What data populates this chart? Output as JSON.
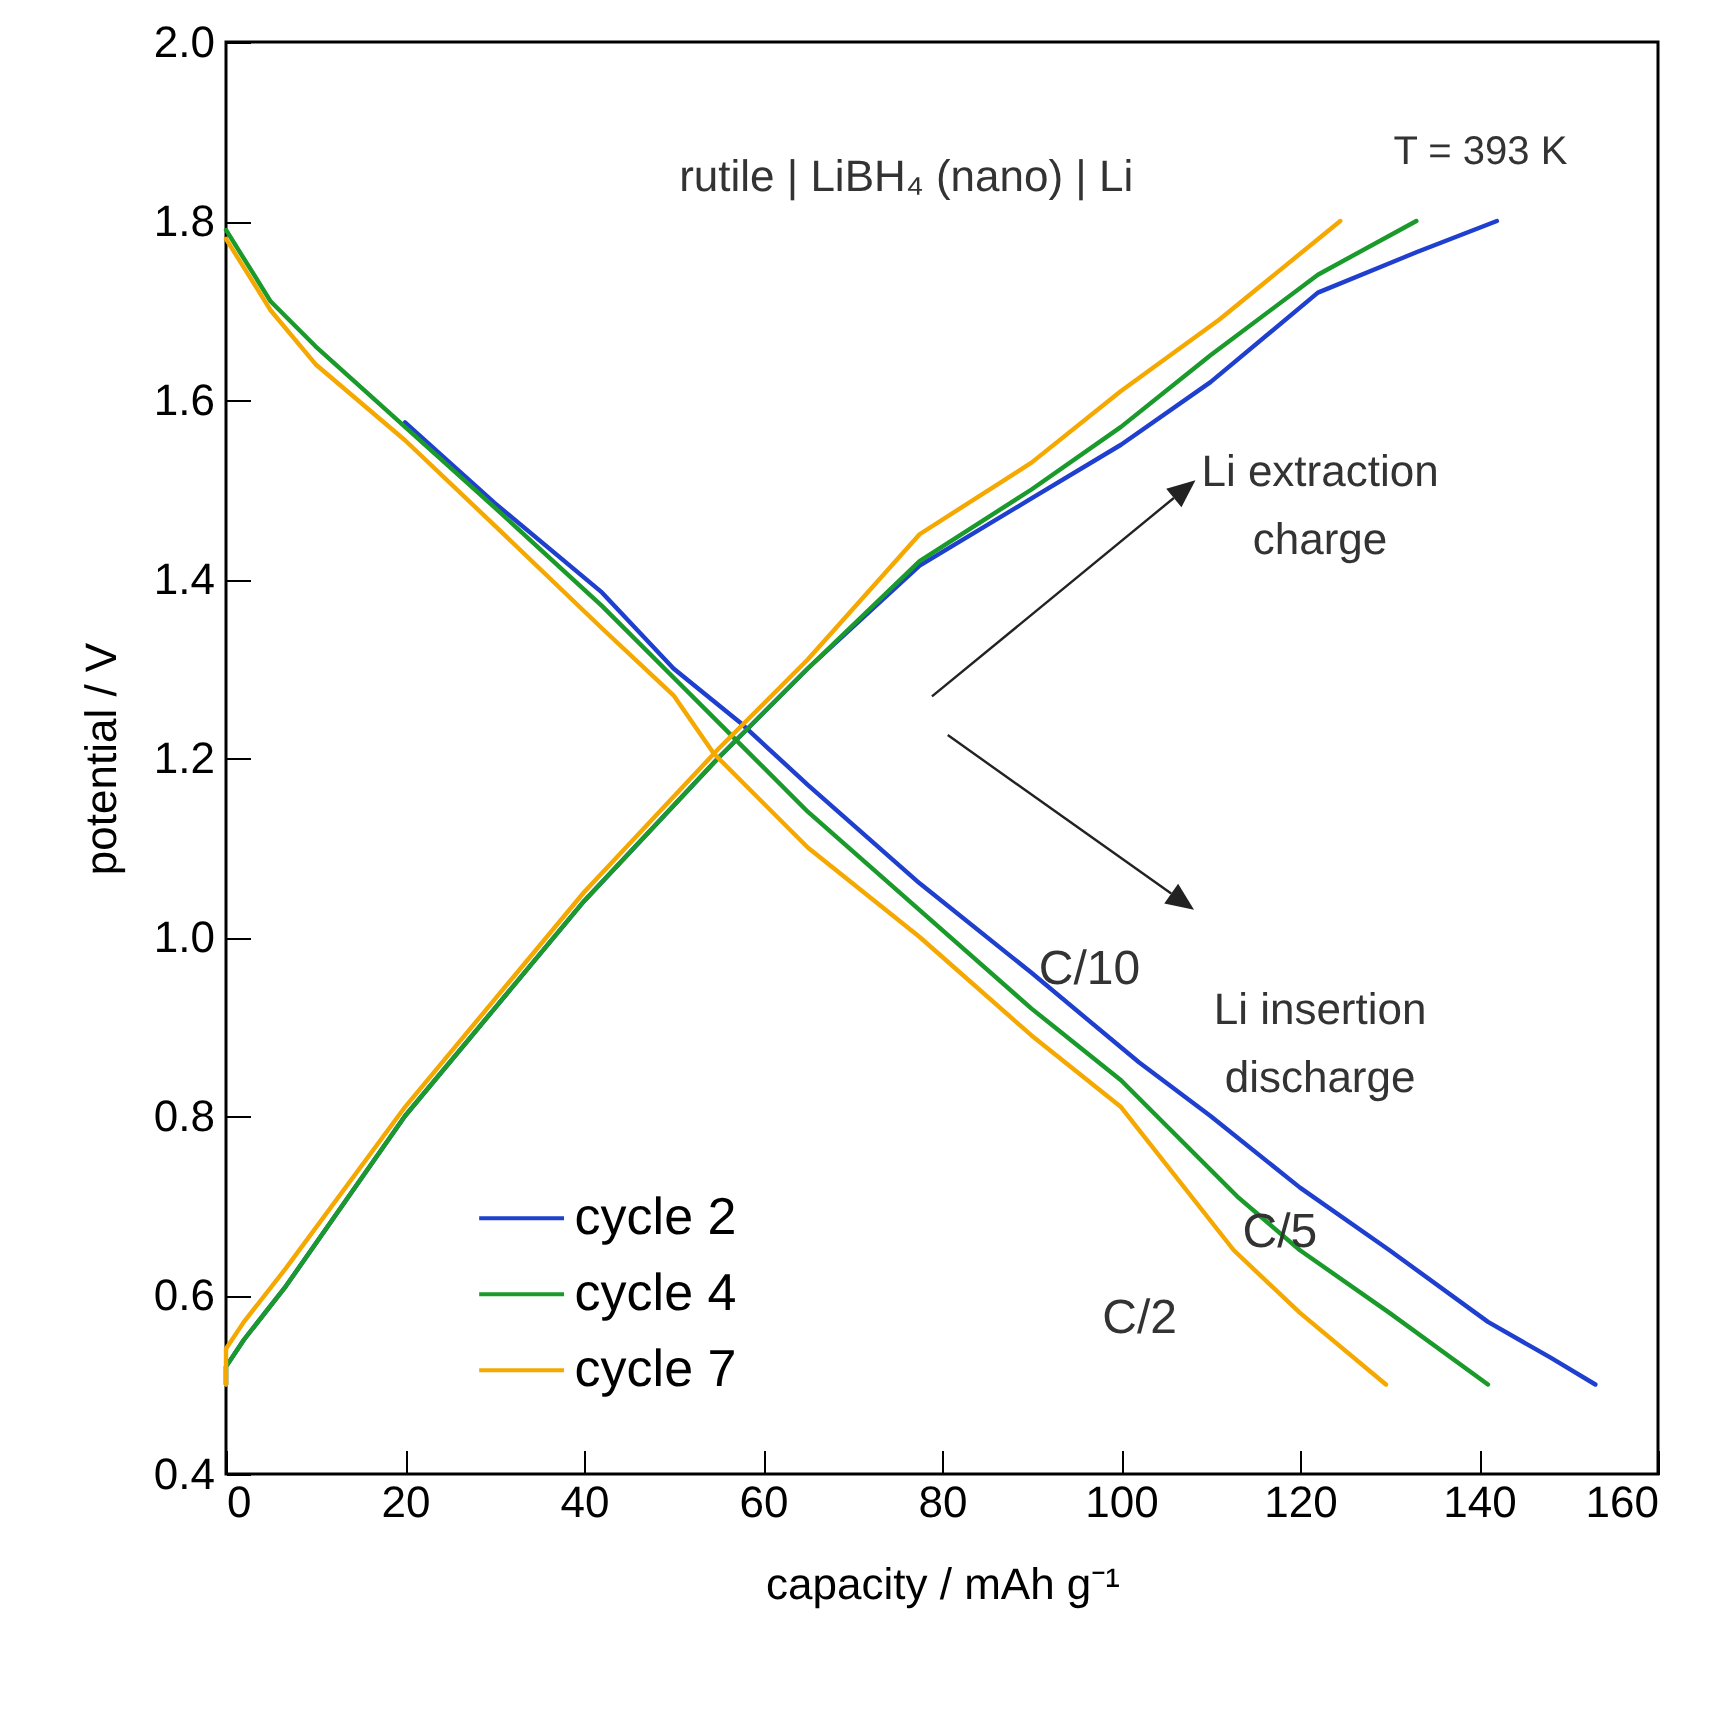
{
  "chart_data": {
    "type": "line",
    "xlabel": "capacity / mAh g⁻¹",
    "ylabel": "potential / V",
    "xlim": [
      0,
      160
    ],
    "xticks": [
      0,
      20,
      40,
      60,
      80,
      100,
      120,
      140,
      160
    ],
    "ylim": [
      0.4,
      2.0
    ],
    "yticks": [
      0.4,
      0.6,
      0.8,
      {
        "value": 1,
        "label": "1.0"
      },
      1.2,
      1.4,
      1.6,
      1.8,
      {
        "value": 2,
        "label": "2.0"
      }
    ],
    "grid": false,
    "legend": "bottom left",
    "series": [
      {
        "name": "cycle 2",
        "color": "#1f3fcf",
        "x": [
          20,
          30,
          42,
          50,
          57.4,
          65,
          77.5,
          90,
          102,
          110,
          120,
          130,
          141,
          148,
          153,
          null,
          0,
          0,
          2,
          6.7,
          20,
          30,
          40,
          55,
          65,
          77.5,
          90,
          100,
          110,
          122,
          133,
          142
        ],
        "values": [
          1.575,
          1.485,
          1.385,
          1.3,
          1.24,
          1.17,
          1.06,
          0.96,
          0.86,
          0.8,
          0.72,
          0.65,
          0.57,
          0.53,
          0.5,
          null,
          0.5,
          0.52,
          0.55,
          0.61,
          0.8,
          0.92,
          1.04,
          1.2,
          1.3,
          1.415,
          1.49,
          1.55,
          1.62,
          1.72,
          1.765,
          1.8
        ]
      },
      {
        "name": "cycle 4",
        "color": "#1a9a2a",
        "x": [
          0,
          5,
          10,
          20,
          30,
          42,
          50,
          57,
          65,
          77.5,
          90,
          100,
          113,
          120,
          130,
          141,
          null,
          0,
          0,
          2,
          6.7,
          20,
          30,
          40,
          55,
          65,
          77.5,
          90,
          100,
          110,
          122,
          133
        ],
        "values": [
          1.79,
          1.71,
          1.66,
          1.57,
          1.48,
          1.37,
          1.29,
          1.22,
          1.14,
          1.03,
          0.92,
          0.84,
          0.71,
          0.65,
          0.58,
          0.5,
          null,
          0.5,
          0.52,
          0.55,
          0.61,
          0.8,
          0.92,
          1.04,
          1.2,
          1.3,
          1.42,
          1.5,
          1.57,
          1.65,
          1.74,
          1.8
        ]
      },
      {
        "name": "cycle 7",
        "color": "#f5a800",
        "x": [
          0,
          5,
          10,
          20,
          30,
          42,
          50,
          54.5,
          65,
          77.5,
          90,
          100,
          112.6,
          120,
          129.6,
          null,
          0,
          0,
          2,
          6.7,
          20,
          30,
          40,
          55,
          65,
          77.5,
          90,
          100,
          111,
          124.5
        ],
        "values": [
          1.78,
          1.7,
          1.64,
          1.555,
          1.46,
          1.345,
          1.27,
          1.205,
          1.1,
          1.0,
          0.89,
          0.81,
          0.65,
          0.58,
          0.5,
          null,
          0.5,
          0.54,
          0.57,
          0.63,
          0.81,
          0.93,
          1.05,
          1.21,
          1.31,
          1.45,
          1.53,
          1.61,
          1.69,
          1.8
        ]
      }
    ],
    "annotations": [
      "rutile | LiBH₄ (nano) | Li",
      "T = 393 K",
      "Li extraction\ncharge",
      "Li insertion\ndischarge",
      "C/10",
      "C/5",
      "C/2"
    ]
  }
}
